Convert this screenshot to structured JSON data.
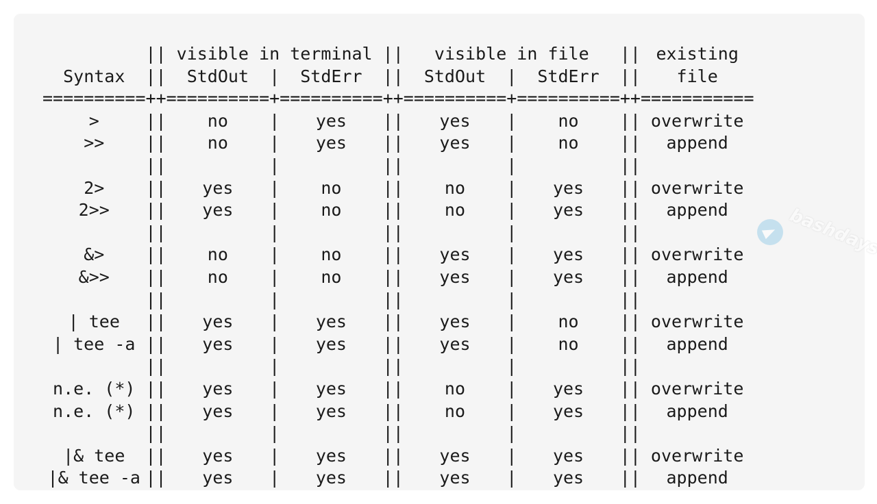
{
  "header": {
    "row1": {
      "syntax": "",
      "terminal": "visible in terminal",
      "file": "visible in file",
      "existing": "existing"
    },
    "row2": {
      "syntax": "Syntax",
      "t_stdout": "StdOut",
      "t_stderr": "StdErr",
      "f_stdout": "StdOut",
      "f_stderr": "StdErr",
      "existing": "file"
    }
  },
  "separator": "==========++==========+==========++==========+==========++===========",
  "rows": [
    [
      "&gt;",
      "no",
      "yes",
      "yes",
      "no",
      "overwrite"
    ],
    [
      ">>",
      "no",
      "yes",
      "yes",
      "no",
      "append"
    ],
    [
      "",
      "",
      "",
      "",
      "",
      ""
    ],
    [
      "2>",
      "yes",
      "no",
      "no",
      "yes",
      "overwrite"
    ],
    [
      "2>>",
      "yes",
      "no",
      "no",
      "yes",
      "append"
    ],
    [
      "",
      "",
      "",
      "",
      "",
      ""
    ],
    [
      "&>",
      "no",
      "no",
      "yes",
      "yes",
      "overwrite"
    ],
    [
      "&>>",
      "no",
      "no",
      "yes",
      "yes",
      "append"
    ],
    [
      "",
      "",
      "",
      "",
      "",
      ""
    ],
    [
      "| tee",
      "yes",
      "yes",
      "yes",
      "no",
      "overwrite"
    ],
    [
      "| tee -a",
      "yes",
      "yes",
      "yes",
      "no",
      "append"
    ],
    [
      "",
      "",
      "",
      "",
      "",
      ""
    ],
    [
      "n.e. (*)",
      "yes",
      "yes",
      "no",
      "yes",
      "overwrite"
    ],
    [
      "n.e. (*)",
      "yes",
      "yes",
      "no",
      "yes",
      "append"
    ],
    [
      "",
      "",
      "",
      "",
      "",
      ""
    ],
    [
      "|& tee",
      "yes",
      "yes",
      "yes",
      "yes",
      "overwrite"
    ],
    [
      "|& tee -a",
      "yes",
      "yes",
      "yes",
      "yes",
      "append"
    ]
  ],
  "watermark": {
    "text": "bashdays",
    "icon": "telegram-icon"
  }
}
